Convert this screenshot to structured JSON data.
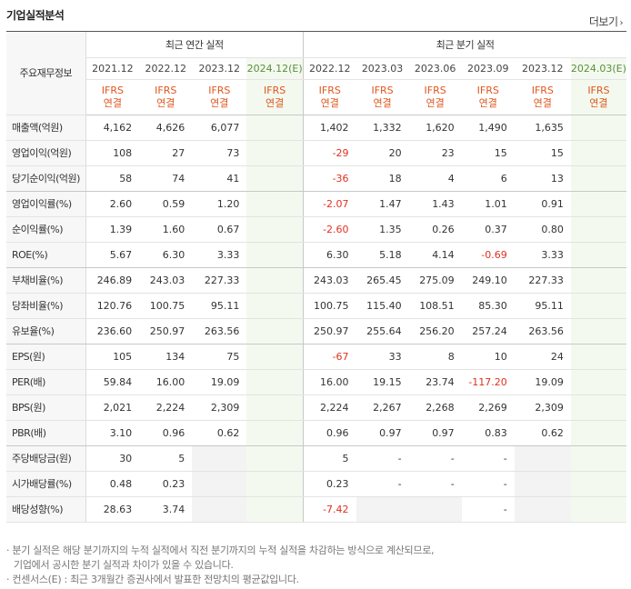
{
  "header": {
    "title": "기업실적분석",
    "more_label": "더보기",
    "more_arrow": "›"
  },
  "table": {
    "corner_label": "주요재무정보",
    "annual_group": "최근 연간 실적",
    "quarter_group": "최근 분기 실적",
    "annual_periods": [
      "2021.12",
      "2022.12",
      "2023.12",
      "2024.12(E)"
    ],
    "quarter_periods": [
      "2022.12",
      "2023.03",
      "2023.06",
      "2023.09",
      "2023.12",
      "2024.03(E)"
    ],
    "basis_line1": "IFRS",
    "basis_line2": "연결",
    "rows": [
      {
        "label": "매출액(억원)",
        "annual": [
          "4,162",
          "4,626",
          "6,077",
          ""
        ],
        "quarter": [
          "1,402",
          "1,332",
          "1,620",
          "1,490",
          "1,635",
          ""
        ]
      },
      {
        "label": "영업이익(억원)",
        "annual": [
          "108",
          "27",
          "73",
          ""
        ],
        "quarter": [
          "-29",
          "20",
          "23",
          "15",
          "15",
          ""
        ]
      },
      {
        "label": "당기순이익(억원)",
        "annual": [
          "58",
          "74",
          "41",
          ""
        ],
        "quarter": [
          "-36",
          "18",
          "4",
          "6",
          "13",
          ""
        ]
      },
      {
        "label": "영업이익률(%)",
        "annual": [
          "2.60",
          "0.59",
          "1.20",
          ""
        ],
        "quarter": [
          "-2.07",
          "1.47",
          "1.43",
          "1.01",
          "0.91",
          ""
        ]
      },
      {
        "label": "순이익률(%)",
        "annual": [
          "1.39",
          "1.60",
          "0.67",
          ""
        ],
        "quarter": [
          "-2.60",
          "1.35",
          "0.26",
          "0.37",
          "0.80",
          ""
        ]
      },
      {
        "label": "ROE(%)",
        "annual": [
          "5.67",
          "6.30",
          "3.33",
          ""
        ],
        "quarter": [
          "6.30",
          "5.18",
          "4.14",
          "-0.69",
          "3.33",
          ""
        ]
      },
      {
        "label": "부채비율(%)",
        "annual": [
          "246.89",
          "243.03",
          "227.33",
          ""
        ],
        "quarter": [
          "243.03",
          "265.45",
          "275.09",
          "249.10",
          "227.33",
          ""
        ]
      },
      {
        "label": "당좌비율(%)",
        "annual": [
          "120.76",
          "100.75",
          "95.11",
          ""
        ],
        "quarter": [
          "100.75",
          "115.40",
          "108.51",
          "85.30",
          "95.11",
          ""
        ]
      },
      {
        "label": "유보율(%)",
        "annual": [
          "236.60",
          "250.97",
          "263.56",
          ""
        ],
        "quarter": [
          "250.97",
          "255.64",
          "256.20",
          "257.24",
          "263.56",
          ""
        ]
      },
      {
        "label": "EPS(원)",
        "annual": [
          "105",
          "134",
          "75",
          ""
        ],
        "quarter": [
          "-67",
          "33",
          "8",
          "10",
          "24",
          ""
        ]
      },
      {
        "label": "PER(배)",
        "annual": [
          "59.84",
          "16.00",
          "19.09",
          ""
        ],
        "quarter": [
          "16.00",
          "19.15",
          "23.74",
          "-117.20",
          "19.09",
          ""
        ]
      },
      {
        "label": "BPS(원)",
        "annual": [
          "2,021",
          "2,224",
          "2,309",
          ""
        ],
        "quarter": [
          "2,224",
          "2,267",
          "2,268",
          "2,269",
          "2,309",
          ""
        ]
      },
      {
        "label": "PBR(배)",
        "annual": [
          "3.10",
          "0.96",
          "0.62",
          ""
        ],
        "quarter": [
          "0.96",
          "0.97",
          "0.97",
          "0.83",
          "0.62",
          ""
        ]
      },
      {
        "label": "주당배당금(원)",
        "annual": [
          "30",
          "5",
          "",
          ""
        ],
        "quarter": [
          "5",
          "-",
          "-",
          "-",
          "",
          ""
        ]
      },
      {
        "label": "시가배당률(%)",
        "annual": [
          "0.48",
          "0.23",
          "",
          ""
        ],
        "quarter": [
          "0.23",
          "-",
          "-",
          "-",
          "",
          ""
        ]
      },
      {
        "label": "배당성향(%)",
        "annual": [
          "28.63",
          "3.74",
          "",
          ""
        ],
        "quarter": [
          "-7.42",
          "",
          "",
          "-",
          "",
          ""
        ]
      }
    ]
  },
  "notes": {
    "line1": "· 분기 실적은 해당 분기까지의 누적 실적에서 직전 분기까지의 누적 실적을 차감하는 방식으로 계산되므로,",
    "line2": "기업에서 공시한 분기 실적과 차이가 있을 수 있습니다.",
    "line3": "· 컨센서스(E) : 최근 3개월간 증권사에서 발표한 전망치의 평균값입니다."
  }
}
